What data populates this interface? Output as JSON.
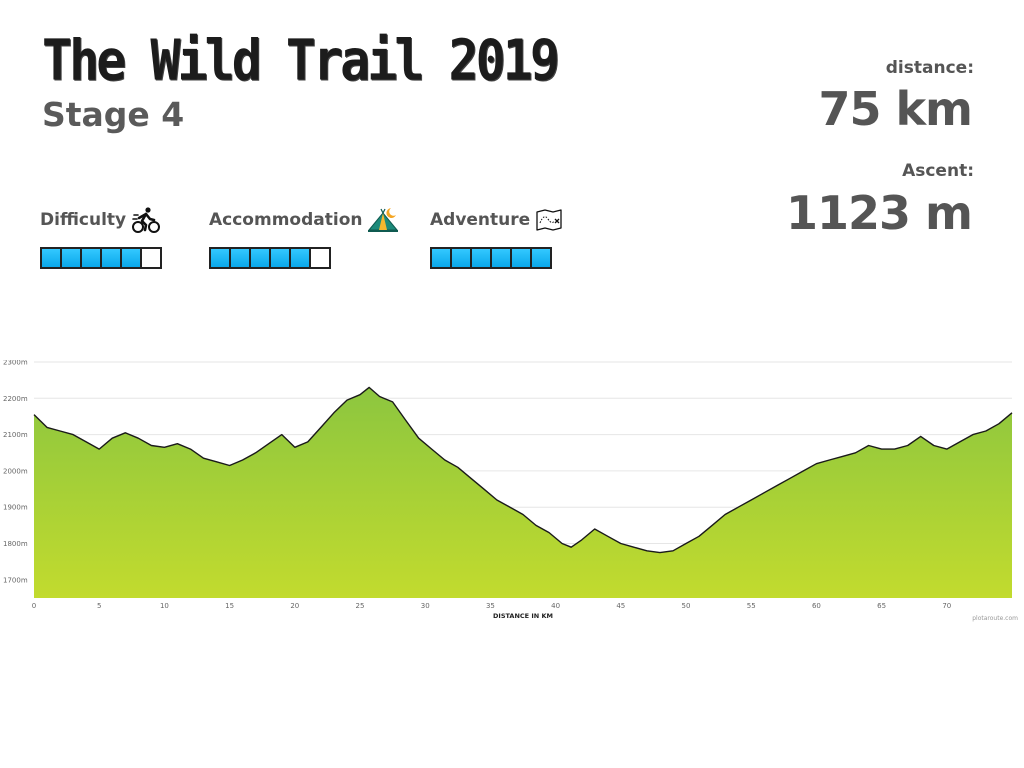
{
  "header": {
    "title": "The Wild Trail 2019",
    "subtitle": "Stage 4"
  },
  "stats": {
    "distance_label": "distance:",
    "distance_value": "75 km",
    "ascent_label": "Ascent:",
    "ascent_value": "1123 m"
  },
  "ratings": [
    {
      "label": "Difficulty",
      "icon": "cyclist-icon",
      "value": 5,
      "max": 6
    },
    {
      "label": "Accommodation",
      "icon": "tent-icon",
      "value": 5,
      "max": 6
    },
    {
      "label": "Adventure",
      "icon": "map-icon",
      "value": 6,
      "max": 6
    }
  ],
  "colors": {
    "fill_top": "#8cc63f",
    "fill_bottom": "#c2db2e",
    "bar_on": "#1ab4f5",
    "line": "#1a1a1a"
  },
  "chart_data": {
    "type": "area",
    "xlabel": "DISTANCE IN KM",
    "xticks": [
      0,
      5,
      10,
      15,
      20,
      25,
      30,
      35,
      40,
      45,
      50,
      55,
      60,
      65,
      70
    ],
    "yticks": [
      1700,
      1800,
      1900,
      2000,
      2100,
      2200,
      2300
    ],
    "ytick_labels": [
      "1700m",
      "1800m",
      "1900m",
      "2000m",
      "2100m",
      "2200m",
      "2300m"
    ],
    "xlim": [
      0,
      75
    ],
    "ylim": [
      1650,
      2300
    ],
    "credit": "plotaroute.com",
    "x": [
      0,
      1,
      2,
      3,
      4,
      5,
      6,
      7,
      8,
      9,
      10,
      11,
      12,
      13,
      14,
      15,
      16,
      17,
      18,
      19,
      20,
      21,
      22,
      23,
      24,
      25,
      25.7,
      26.5,
      27.5,
      28.5,
      29.5,
      30.5,
      31.5,
      32.5,
      33.5,
      34.5,
      35.5,
      36.5,
      37.5,
      38.5,
      39.5,
      40.5,
      41.2,
      42,
      43,
      44,
      45,
      46,
      47,
      48,
      49,
      50,
      51,
      52,
      53,
      54,
      55,
      56,
      57,
      58,
      59,
      60,
      61,
      62,
      63,
      64,
      65,
      66,
      67,
      68,
      69,
      70,
      71,
      72,
      73,
      74,
      75
    ],
    "y": [
      2155,
      2120,
      2110,
      2100,
      2080,
      2060,
      2090,
      2105,
      2090,
      2070,
      2065,
      2075,
      2060,
      2035,
      2025,
      2015,
      2030,
      2050,
      2075,
      2100,
      2065,
      2080,
      2120,
      2160,
      2195,
      2210,
      2230,
      2205,
      2190,
      2140,
      2090,
      2060,
      2030,
      2010,
      1980,
      1950,
      1920,
      1900,
      1880,
      1850,
      1830,
      1800,
      1790,
      1810,
      1840,
      1820,
      1800,
      1790,
      1780,
      1775,
      1780,
      1800,
      1820,
      1850,
      1880,
      1900,
      1920,
      1940,
      1960,
      1980,
      2000,
      2020,
      2030,
      2040,
      2050,
      2070,
      2060,
      2060,
      2070,
      2095,
      2070,
      2060,
      2080,
      2100,
      2110,
      2130,
      2160
    ]
  }
}
